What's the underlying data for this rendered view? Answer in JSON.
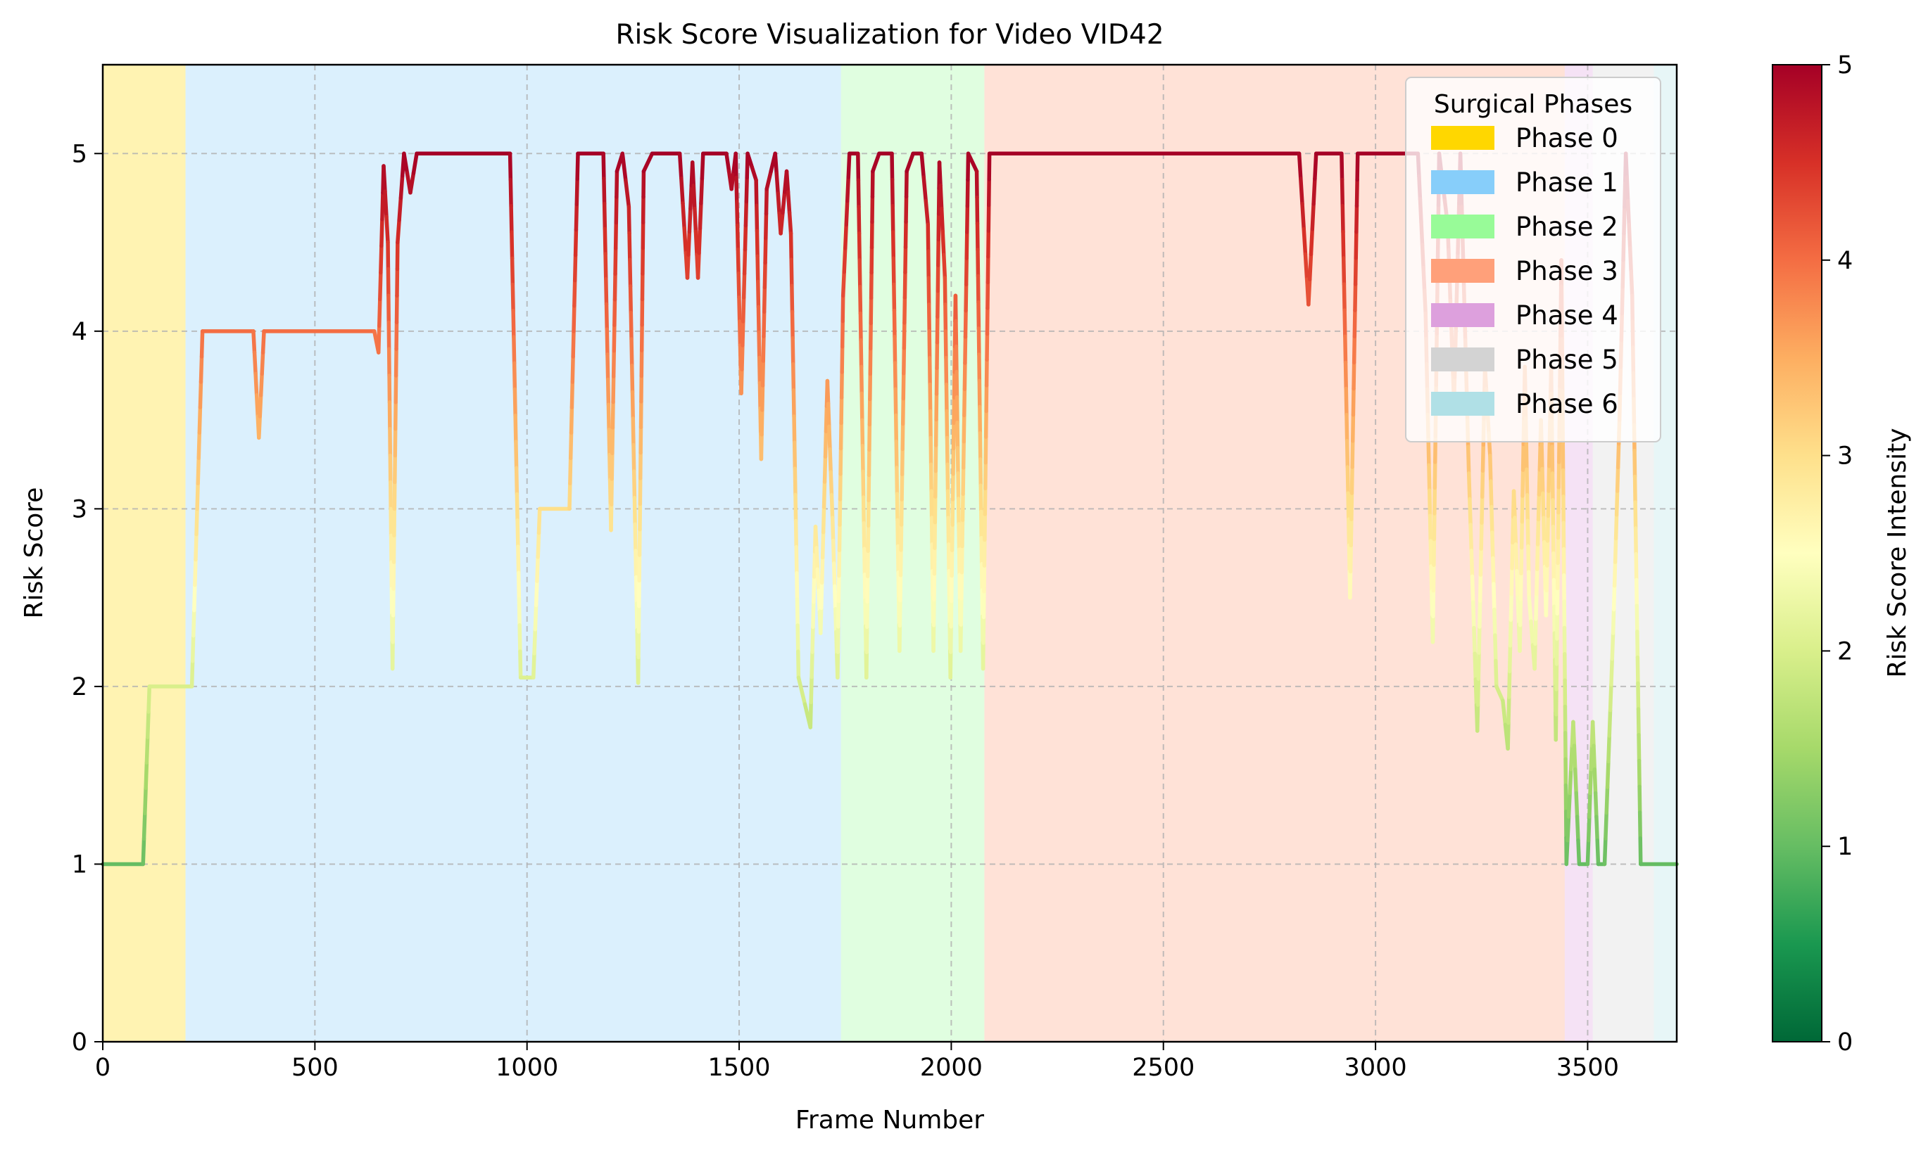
{
  "chart_data": {
    "type": "line",
    "title": "Risk Score Visualization for Video VID42",
    "xlabel": "Frame Number",
    "ylabel": "Risk Score",
    "xlim": [
      0,
      3710
    ],
    "ylim": [
      0,
      5.5
    ],
    "x_ticks": [
      0,
      500,
      1000,
      1500,
      2000,
      2500,
      3000,
      3500
    ],
    "y_ticks": [
      0,
      1,
      2,
      3,
      4,
      5
    ],
    "grid": true,
    "colormap": "RdYlGn_r",
    "colorbar": {
      "label": "Risk Score Intensity",
      "range": [
        0,
        5
      ],
      "ticks": [
        0,
        1,
        2,
        3,
        4,
        5
      ]
    },
    "legend": {
      "title": "Surgical Phases",
      "position": "top-right",
      "entries": [
        "Phase 0",
        "Phase 1",
        "Phase 2",
        "Phase 3",
        "Phase 4",
        "Phase 5",
        "Phase 6"
      ]
    },
    "phases": [
      {
        "name": "Phase 0",
        "start": 0,
        "end": 195,
        "color": "#FFD700"
      },
      {
        "name": "Phase 1",
        "start": 195,
        "end": 1740,
        "color": "#87CEFA"
      },
      {
        "name": "Phase 2",
        "start": 1740,
        "end": 2078,
        "color": "#98FB98"
      },
      {
        "name": "Phase 3",
        "start": 2078,
        "end": 3446,
        "color": "#FFA07A"
      },
      {
        "name": "Phase 4",
        "start": 3446,
        "end": 3512,
        "color": "#DDA0DD"
      },
      {
        "name": "Phase 5",
        "start": 3512,
        "end": 3656,
        "color": "#D3D3D3"
      },
      {
        "name": "Phase 6",
        "start": 3656,
        "end": 3710,
        "color": "#B0E0E6"
      }
    ],
    "series": [
      {
        "points": [
          [
            0,
            1
          ],
          [
            95,
            1
          ],
          [
            110,
            2
          ],
          [
            210,
            2
          ],
          [
            235,
            4
          ],
          [
            355,
            4
          ],
          [
            368,
            3.4
          ],
          [
            380,
            4
          ],
          [
            640,
            4
          ],
          [
            650,
            3.88
          ],
          [
            662,
            4.93
          ],
          [
            672,
            4.5
          ],
          [
            683,
            2.1
          ],
          [
            695,
            4.5
          ],
          [
            710,
            5
          ],
          [
            725,
            4.78
          ],
          [
            740,
            5
          ],
          [
            960,
            5
          ],
          [
            985,
            2.05
          ],
          [
            1015,
            2.05
          ],
          [
            1030,
            3
          ],
          [
            1100,
            3
          ],
          [
            1120,
            5
          ],
          [
            1180,
            5
          ],
          [
            1198,
            2.88
          ],
          [
            1212,
            4.9
          ],
          [
            1225,
            5
          ],
          [
            1240,
            4.7
          ],
          [
            1262,
            2.02
          ],
          [
            1275,
            4.9
          ],
          [
            1295,
            5
          ],
          [
            1360,
            5
          ],
          [
            1378,
            4.3
          ],
          [
            1390,
            4.95
          ],
          [
            1403,
            4.3
          ],
          [
            1415,
            5
          ],
          [
            1470,
            5
          ],
          [
            1482,
            4.8
          ],
          [
            1492,
            5
          ],
          [
            1505,
            3.65
          ],
          [
            1520,
            5
          ],
          [
            1540,
            4.85
          ],
          [
            1552,
            3.28
          ],
          [
            1565,
            4.8
          ],
          [
            1585,
            5
          ],
          [
            1598,
            4.55
          ],
          [
            1612,
            4.9
          ],
          [
            1622,
            4.55
          ],
          [
            1640,
            2.05
          ],
          [
            1655,
            1.9
          ],
          [
            1668,
            1.77
          ],
          [
            1680,
            2.9
          ],
          [
            1692,
            2.3
          ],
          [
            1708,
            3.72
          ],
          [
            1720,
            2.95
          ],
          [
            1732,
            2.05
          ],
          [
            1745,
            4.2
          ],
          [
            1760,
            5
          ],
          [
            1780,
            5
          ],
          [
            1790,
            3.5
          ],
          [
            1800,
            2.05
          ],
          [
            1815,
            4.9
          ],
          [
            1830,
            5
          ],
          [
            1860,
            5
          ],
          [
            1878,
            2.2
          ],
          [
            1895,
            4.9
          ],
          [
            1910,
            5
          ],
          [
            1930,
            5
          ],
          [
            1945,
            4.6
          ],
          [
            1958,
            2.2
          ],
          [
            1972,
            4.95
          ],
          [
            1985,
            4.3
          ],
          [
            1998,
            2.05
          ],
          [
            2010,
            4.2
          ],
          [
            2022,
            2.2
          ],
          [
            2040,
            5
          ],
          [
            2060,
            4.9
          ],
          [
            2075,
            2.1
          ],
          [
            2090,
            5
          ],
          [
            2820,
            5
          ],
          [
            2842,
            4.15
          ],
          [
            2860,
            5
          ],
          [
            2920,
            5
          ],
          [
            2940,
            2.5
          ],
          [
            2958,
            5
          ],
          [
            3100,
            5
          ],
          [
            3118,
            4.1
          ],
          [
            3135,
            2.25
          ],
          [
            3150,
            5
          ],
          [
            3170,
            4.6
          ],
          [
            3185,
            3.6
          ],
          [
            3200,
            5
          ],
          [
            3220,
            3.2
          ],
          [
            3240,
            1.75
          ],
          [
            3258,
            3.8
          ],
          [
            3270,
            3.3
          ],
          [
            3285,
            2.0
          ],
          [
            3300,
            1.92
          ],
          [
            3312,
            1.65
          ],
          [
            3326,
            3.1
          ],
          [
            3340,
            2.2
          ],
          [
            3352,
            3.8
          ],
          [
            3362,
            2.5
          ],
          [
            3375,
            2.1
          ],
          [
            3390,
            3.5
          ],
          [
            3402,
            2.4
          ],
          [
            3414,
            3.8
          ],
          [
            3425,
            1.7
          ],
          [
            3438,
            4.4
          ],
          [
            3450,
            1.0
          ],
          [
            3466,
            1.8
          ],
          [
            3480,
            1.0
          ],
          [
            3500,
            1.0
          ],
          [
            3512,
            1.8
          ],
          [
            3525,
            1.0
          ],
          [
            3540,
            1.0
          ],
          [
            3560,
            2.3
          ],
          [
            3575,
            3.5
          ],
          [
            3590,
            5
          ],
          [
            3605,
            4.2
          ],
          [
            3625,
            1.0
          ],
          [
            3710,
            1.0
          ]
        ]
      }
    ]
  }
}
